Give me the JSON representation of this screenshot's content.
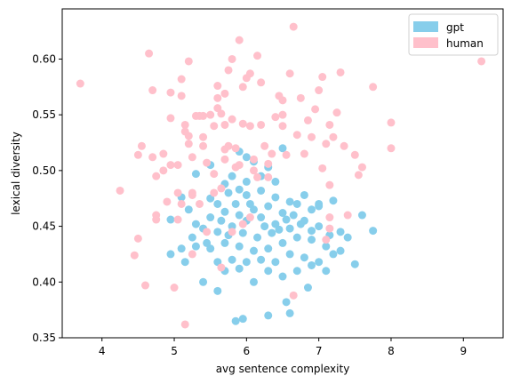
{
  "chart_data": {
    "type": "scatter",
    "title": "",
    "xlabel": "avg sentence complexity",
    "ylabel": "lexical diversity",
    "xlim": [
      3.45,
      9.55
    ],
    "ylim": [
      0.35,
      0.645
    ],
    "xticks": [
      "4",
      "5",
      "6",
      "7",
      "8",
      "9"
    ],
    "xtick_values": [
      4,
      5,
      6,
      7,
      8,
      9
    ],
    "yticks": [
      "0.35",
      "0.40",
      "0.45",
      "0.50",
      "0.55",
      "0.60"
    ],
    "ytick_values": [
      0.35,
      0.4,
      0.45,
      0.5,
      0.55,
      0.6
    ],
    "grid": false,
    "legend_position": "top-right",
    "series": [
      {
        "name": "gpt",
        "color": "#87ceeb",
        "points": [
          [
            5.1,
            0.476
          ],
          [
            5.3,
            0.497
          ],
          [
            5.5,
            0.505
          ],
          [
            5.9,
            0.517
          ],
          [
            6.1,
            0.508
          ],
          [
            6.3,
            0.503
          ],
          [
            6.5,
            0.52
          ],
          [
            6.0,
            0.512
          ],
          [
            5.8,
            0.495
          ],
          [
            5.7,
            0.488
          ],
          [
            5.9,
            0.483
          ],
          [
            6.0,
            0.478
          ],
          [
            6.2,
            0.482
          ],
          [
            6.4,
            0.476
          ],
          [
            6.6,
            0.472
          ],
          [
            6.8,
            0.478
          ],
          [
            7.0,
            0.468
          ],
          [
            7.2,
            0.473
          ],
          [
            6.9,
            0.465
          ],
          [
            6.7,
            0.47
          ],
          [
            6.5,
            0.462
          ],
          [
            6.3,
            0.468
          ],
          [
            6.1,
            0.465
          ],
          [
            5.9,
            0.46
          ],
          [
            5.7,
            0.463
          ],
          [
            5.5,
            0.458
          ],
          [
            5.3,
            0.452
          ],
          [
            5.4,
            0.448
          ],
          [
            5.6,
            0.445
          ],
          [
            5.8,
            0.45
          ],
          [
            6.0,
            0.455
          ],
          [
            6.2,
            0.458
          ],
          [
            6.4,
            0.452
          ],
          [
            6.6,
            0.448
          ],
          [
            6.8,
            0.455
          ],
          [
            7.0,
            0.45
          ],
          [
            7.3,
            0.445
          ],
          [
            7.4,
            0.44
          ],
          [
            7.6,
            0.46
          ],
          [
            7.75,
            0.446
          ],
          [
            7.3,
            0.428
          ],
          [
            7.1,
            0.432
          ],
          [
            6.9,
            0.438
          ],
          [
            6.7,
            0.44
          ],
          [
            6.5,
            0.435
          ],
          [
            6.3,
            0.43
          ],
          [
            6.1,
            0.428
          ],
          [
            5.9,
            0.432
          ],
          [
            5.7,
            0.435
          ],
          [
            5.5,
            0.43
          ],
          [
            5.3,
            0.432
          ],
          [
            5.1,
            0.43
          ],
          [
            4.95,
            0.425
          ],
          [
            4.95,
            0.456
          ],
          [
            5.2,
            0.465
          ],
          [
            5.15,
            0.418
          ],
          [
            5.4,
            0.4
          ],
          [
            5.6,
            0.392
          ],
          [
            5.7,
            0.41
          ],
          [
            5.9,
            0.412
          ],
          [
            6.1,
            0.4
          ],
          [
            6.3,
            0.41
          ],
          [
            6.5,
            0.405
          ],
          [
            6.7,
            0.41
          ],
          [
            6.9,
            0.415
          ],
          [
            7.1,
            0.41
          ],
          [
            7.2,
            0.425
          ],
          [
            7.0,
            0.418
          ],
          [
            6.8,
            0.422
          ],
          [
            6.6,
            0.425
          ],
          [
            6.4,
            0.418
          ],
          [
            6.2,
            0.42
          ],
          [
            6.0,
            0.418
          ],
          [
            5.8,
            0.42
          ],
          [
            5.6,
            0.418
          ],
          [
            6.3,
            0.37
          ],
          [
            6.55,
            0.382
          ],
          [
            6.6,
            0.372
          ],
          [
            5.95,
            0.367
          ],
          [
            5.85,
            0.365
          ],
          [
            6.85,
            0.395
          ],
          [
            7.5,
            0.416
          ],
          [
            7.0,
            0.47
          ],
          [
            6.4,
            0.49
          ],
          [
            6.2,
            0.495
          ],
          [
            6.0,
            0.49
          ],
          [
            5.75,
            0.48
          ],
          [
            5.6,
            0.47
          ],
          [
            5.5,
            0.475
          ],
          [
            5.45,
            0.435
          ],
          [
            5.25,
            0.44
          ],
          [
            6.75,
            0.452
          ],
          [
            6.55,
            0.456
          ],
          [
            6.35,
            0.444
          ],
          [
            6.15,
            0.44
          ],
          [
            5.95,
            0.444
          ],
          [
            5.75,
            0.442
          ],
          [
            5.65,
            0.455
          ],
          [
            5.85,
            0.47
          ],
          [
            6.05,
            0.47
          ],
          [
            6.25,
            0.45
          ],
          [
            6.45,
            0.447
          ],
          [
            6.65,
            0.46
          ],
          [
            6.9,
            0.446
          ],
          [
            7.15,
            0.442
          ]
        ]
      },
      {
        "name": "human",
        "color": "#ffc0cb",
        "points": [
          [
            3.7,
            0.578
          ],
          [
            4.25,
            0.482
          ],
          [
            4.45,
            0.424
          ],
          [
            4.5,
            0.439
          ],
          [
            4.6,
            0.397
          ],
          [
            4.5,
            0.514
          ],
          [
            4.55,
            0.522
          ],
          [
            4.65,
            0.605
          ],
          [
            4.7,
            0.572
          ],
          [
            4.7,
            0.512
          ],
          [
            4.75,
            0.495
          ],
          [
            4.75,
            0.46
          ],
          [
            4.75,
            0.456
          ],
          [
            4.85,
            0.5
          ],
          [
            4.85,
            0.515
          ],
          [
            4.9,
            0.472
          ],
          [
            4.95,
            0.505
          ],
          [
            4.95,
            0.57
          ],
          [
            4.95,
            0.547
          ],
          [
            5.0,
            0.395
          ],
          [
            5.05,
            0.505
          ],
          [
            5.05,
            0.48
          ],
          [
            5.1,
            0.567
          ],
          [
            5.1,
            0.582
          ],
          [
            5.15,
            0.362
          ],
          [
            5.15,
            0.535
          ],
          [
            5.15,
            0.541
          ],
          [
            5.2,
            0.598
          ],
          [
            5.2,
            0.524
          ],
          [
            5.2,
            0.531
          ],
          [
            5.25,
            0.478
          ],
          [
            5.25,
            0.512
          ],
          [
            5.3,
            0.549
          ],
          [
            5.35,
            0.549
          ],
          [
            5.4,
            0.549
          ],
          [
            5.4,
            0.53
          ],
          [
            5.4,
            0.522
          ],
          [
            5.45,
            0.507
          ],
          [
            5.45,
            0.445
          ],
          [
            5.5,
            0.55
          ],
          [
            5.55,
            0.54
          ],
          [
            5.55,
            0.497
          ],
          [
            5.6,
            0.556
          ],
          [
            5.6,
            0.565
          ],
          [
            5.6,
            0.576
          ],
          [
            5.65,
            0.551
          ],
          [
            5.65,
            0.484
          ],
          [
            5.7,
            0.569
          ],
          [
            5.7,
            0.541
          ],
          [
            5.7,
            0.519
          ],
          [
            5.75,
            0.522
          ],
          [
            5.75,
            0.59
          ],
          [
            5.8,
            0.6
          ],
          [
            5.8,
            0.546
          ],
          [
            5.85,
            0.52
          ],
          [
            5.85,
            0.503
          ],
          [
            5.9,
            0.617
          ],
          [
            5.95,
            0.575
          ],
          [
            5.95,
            0.542
          ],
          [
            6.0,
            0.583
          ],
          [
            6.05,
            0.587
          ],
          [
            6.05,
            0.54
          ],
          [
            6.1,
            0.51
          ],
          [
            6.15,
            0.603
          ],
          [
            6.2,
            0.579
          ],
          [
            6.2,
            0.541
          ],
          [
            6.25,
            0.522
          ],
          [
            6.3,
            0.506
          ],
          [
            6.35,
            0.515
          ],
          [
            6.4,
            0.548
          ],
          [
            6.45,
            0.567
          ],
          [
            6.5,
            0.563
          ],
          [
            6.5,
            0.55
          ],
          [
            6.55,
            0.514
          ],
          [
            6.6,
            0.587
          ],
          [
            6.65,
            0.629
          ],
          [
            6.7,
            0.532
          ],
          [
            6.75,
            0.565
          ],
          [
            6.8,
            0.515
          ],
          [
            6.85,
            0.545
          ],
          [
            6.9,
            0.53
          ],
          [
            6.95,
            0.555
          ],
          [
            7.0,
            0.572
          ],
          [
            7.05,
            0.584
          ],
          [
            7.05,
            0.502
          ],
          [
            7.1,
            0.524
          ],
          [
            7.15,
            0.487
          ],
          [
            7.2,
            0.53
          ],
          [
            7.25,
            0.552
          ],
          [
            7.3,
            0.588
          ],
          [
            7.35,
            0.522
          ],
          [
            7.4,
            0.46
          ],
          [
            7.5,
            0.514
          ],
          [
            7.55,
            0.496
          ],
          [
            7.6,
            0.503
          ],
          [
            7.75,
            0.575
          ],
          [
            8.0,
            0.543
          ],
          [
            8.0,
            0.52
          ],
          [
            9.25,
            0.598
          ],
          [
            7.15,
            0.448
          ],
          [
            6.65,
            0.388
          ],
          [
            6.05,
            0.458
          ],
          [
            5.95,
            0.452
          ],
          [
            5.8,
            0.445
          ],
          [
            5.65,
            0.413
          ],
          [
            5.25,
            0.425
          ],
          [
            5.05,
            0.456
          ],
          [
            5.1,
            0.47
          ],
          [
            5.25,
            0.48
          ],
          [
            5.35,
            0.47
          ],
          [
            5.55,
            0.48
          ],
          [
            6.15,
            0.494
          ],
          [
            6.3,
            0.494
          ],
          [
            6.1,
            0.5
          ],
          [
            5.9,
            0.505
          ],
          [
            5.7,
            0.51
          ],
          [
            6.5,
            0.54
          ],
          [
            7.15,
            0.541
          ],
          [
            7.1,
            0.438
          ],
          [
            7.15,
            0.458
          ]
        ]
      }
    ]
  }
}
